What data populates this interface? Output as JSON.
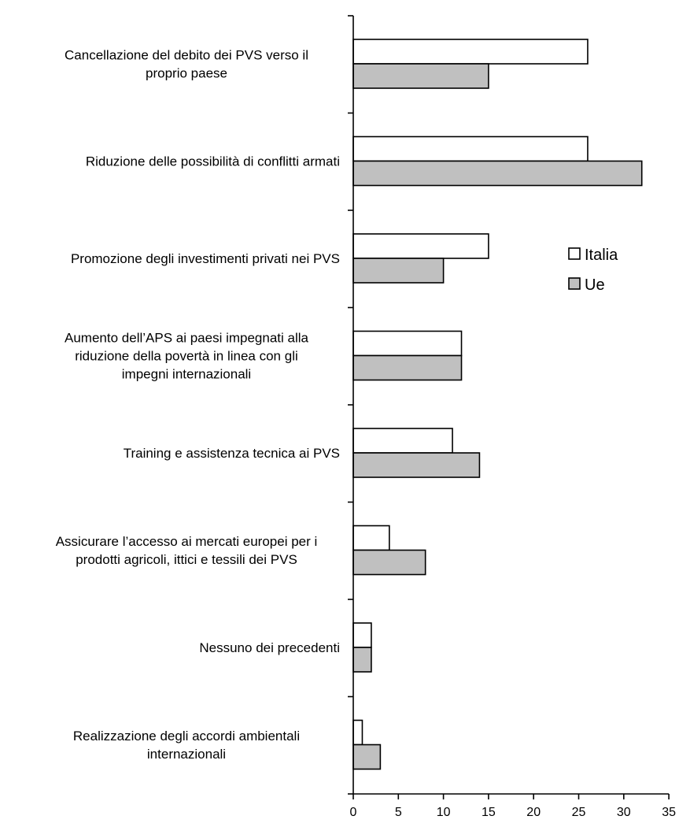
{
  "chart_data": {
    "type": "bar",
    "orientation": "horizontal",
    "categories": [
      [
        "Cancellazione del debito dei PVS verso il",
        "proprio paese"
      ],
      [
        "Riduzione delle possibilità di conflitti armati"
      ],
      [
        "Promozione degli investimenti privati nei PVS"
      ],
      [
        "Aumento dell’APS ai paesi impegnati alla",
        "riduzione della povertà in linea con gli",
        "impegni internazionali"
      ],
      [
        "Training e assistenza tecnica ai PVS"
      ],
      [
        "Assicurare l’accesso ai mercati europei per i",
        "prodotti agricoli, ittici e tessili dei PVS"
      ],
      [
        "Nessuno dei precedenti"
      ],
      [
        "Realizzazione degli accordi ambientali",
        "internazionali"
      ]
    ],
    "series": [
      {
        "name": "Italia",
        "color": "#ffffff",
        "values": [
          26,
          26,
          15,
          12,
          11,
          4,
          2,
          1
        ]
      },
      {
        "name": "Ue",
        "color": "#c0c0c0",
        "values": [
          15,
          32,
          10,
          12,
          14,
          8,
          2,
          3
        ]
      }
    ],
    "xlim": [
      0,
      35
    ],
    "xticks": [
      "0",
      "5",
      "10",
      "15",
      "20",
      "25",
      "30",
      "35"
    ],
    "legend_position": "right",
    "grid": false,
    "title": "",
    "xlabel": "",
    "ylabel": ""
  }
}
